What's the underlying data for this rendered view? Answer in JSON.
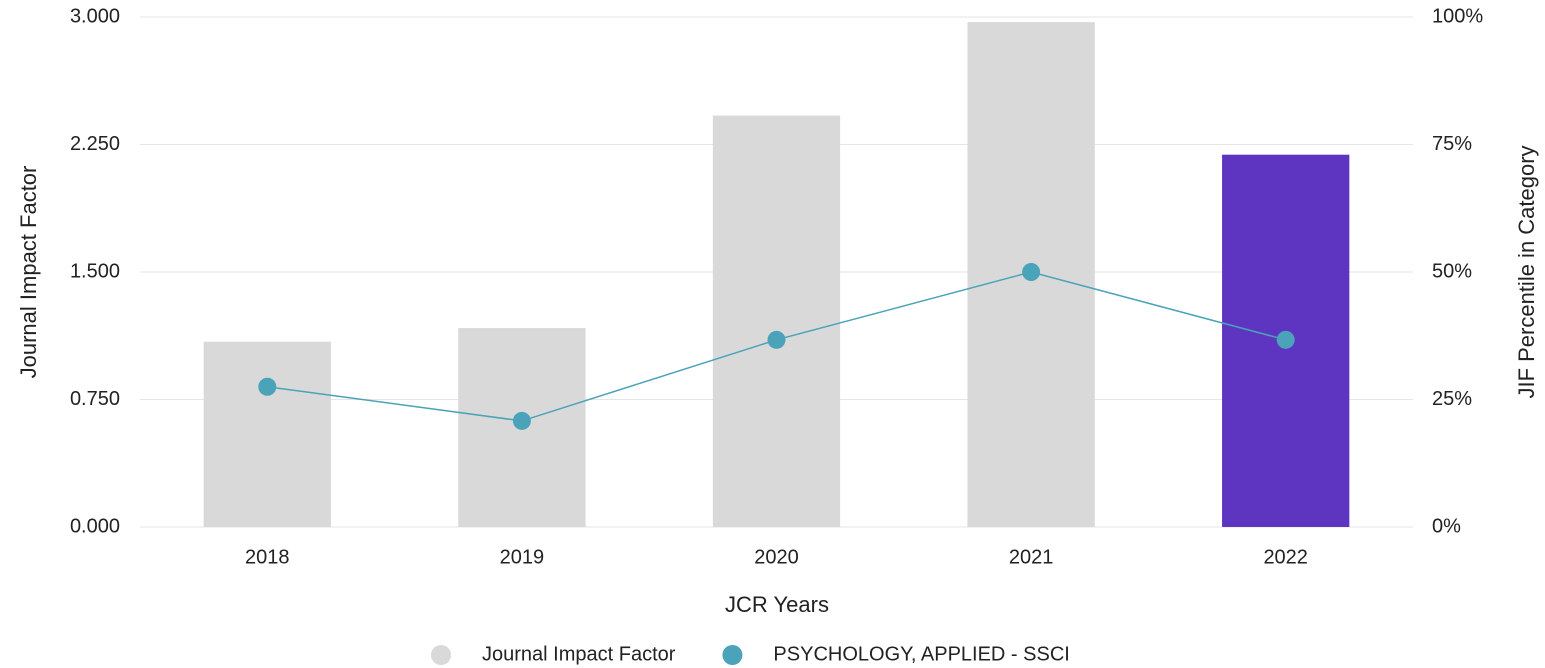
{
  "chart_data": {
    "type": "bar_line",
    "categories": [
      "2018",
      "2019",
      "2020",
      "2021",
      "2022"
    ],
    "series": [
      {
        "name": "Journal Impact Factor",
        "type": "bar",
        "color": "#d9d9d9",
        "colors": [
          "#d9d9d9",
          "#d9d9d9",
          "#d9d9d9",
          "#d9d9d9",
          "#5e35c0"
        ],
        "values": [
          1.09,
          1.17,
          2.42,
          2.97,
          2.19
        ]
      },
      {
        "name": "PSYCHOLOGY, APPLIED - SSCI",
        "type": "line",
        "axis": "y2",
        "color": "#4aa3b8",
        "values": [
          27.5,
          20.8,
          36.7,
          50,
          36.7
        ]
      }
    ],
    "xlabel": "JCR Years",
    "ylabel": "Journal Impact Factor",
    "y2label": "JIF Percentile in Category",
    "ylim": [
      0,
      3
    ],
    "yticks": [
      {
        "value": 0,
        "label": "0.000"
      },
      {
        "value": 0.75,
        "label": "0.750"
      },
      {
        "value": 1.5,
        "label": "1.500"
      },
      {
        "value": 2.25,
        "label": "2.250"
      },
      {
        "value": 3,
        "label": "3.000"
      }
    ],
    "y2lim": [
      0,
      100
    ],
    "y2ticks": [
      {
        "value": 0,
        "label": "0%"
      },
      {
        "value": 25,
        "label": "25%"
      },
      {
        "value": 50,
        "label": "50%"
      },
      {
        "value": 75,
        "label": "75%"
      },
      {
        "value": 100,
        "label": "100%"
      }
    ],
    "grid": true,
    "legend": "bottom"
  }
}
